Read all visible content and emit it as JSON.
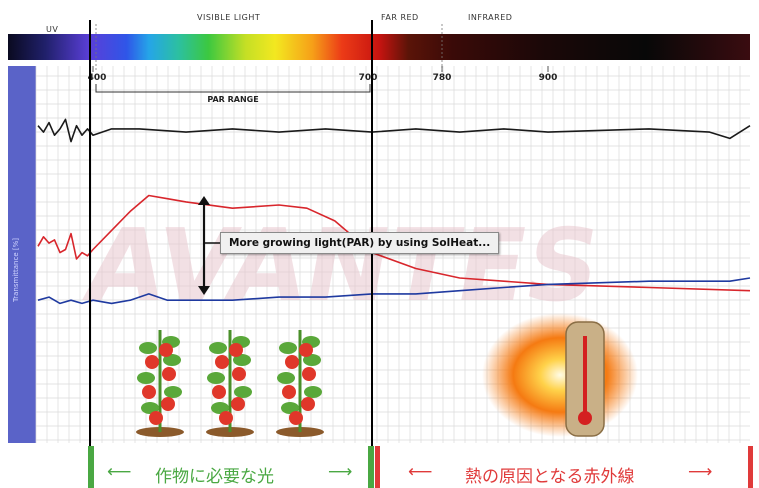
{
  "header": {
    "uv": "UV",
    "visible_light": "VISIBLE LIGHT",
    "far_red": "FAR RED",
    "infrared": "INFRARED"
  },
  "wavelength_ticks": [
    "400",
    "700",
    "780",
    "900"
  ],
  "par_range_label": "PAR RANGE",
  "watermark": "AVANTES",
  "annotation": "More growing light(PAR) by using SolHeat...",
  "bottom": {
    "crop_light": "作物に必要な光",
    "infrared_heat": "熱の原因となる赤外線",
    "arrow_left": "⟵",
    "arrow_right": "⟶"
  },
  "colors": {
    "black_series": "#1a1a1a",
    "red_series": "#d8262c",
    "blue_series": "#1f3aa0",
    "green_marker": "#4aa843",
    "red_marker": "#e03a3a"
  },
  "chart_data": {
    "type": "line",
    "xlabel": "",
    "ylabel": "Transmittance [%]",
    "xlim": [
      300,
      1000
    ],
    "ylim": [
      0,
      110
    ],
    "grid": true,
    "x_ticks": [
      400,
      700,
      780,
      900
    ],
    "series": [
      {
        "color": "#1a1a1a",
        "x": [
          300,
          310,
          320,
          330,
          340,
          350,
          360,
          370,
          380,
          390,
          400,
          420,
          450,
          500,
          550,
          600,
          650,
          700,
          750,
          800,
          850,
          900,
          950,
          980,
          990,
          1000
        ],
        "y": [
          100,
          98,
          101,
          97,
          99,
          102,
          95,
          100,
          97,
          99,
          97,
          99,
          99,
          98,
          99,
          98,
          99,
          98,
          99,
          98,
          99,
          98,
          99,
          98,
          96,
          100
        ]
      },
      {
        "color": "#d8262c",
        "x": [
          300,
          310,
          320,
          330,
          340,
          350,
          360,
          370,
          380,
          390,
          400,
          420,
          440,
          460,
          480,
          500,
          550,
          600,
          630,
          660,
          700,
          750,
          800,
          850,
          900,
          950,
          1000
        ],
        "y": [
          62,
          65,
          63,
          64,
          60,
          61,
          66,
          58,
          60,
          59,
          61,
          67,
          73,
          78,
          77,
          76,
          74,
          75,
          74,
          70,
          60,
          55,
          52,
          51,
          50,
          49,
          48
        ]
      },
      {
        "color": "#1f3aa0",
        "x": [
          300,
          320,
          340,
          360,
          380,
          400,
          420,
          440,
          460,
          480,
          500,
          550,
          600,
          650,
          700,
          750,
          800,
          850,
          900,
          950,
          990,
          1000
        ],
        "y": [
          45,
          46,
          44,
          45,
          44,
          45,
          44,
          45,
          47,
          45,
          45,
          45,
          46,
          46,
          47,
          47,
          48,
          49,
          50,
          51,
          51,
          52
        ]
      }
    ]
  }
}
